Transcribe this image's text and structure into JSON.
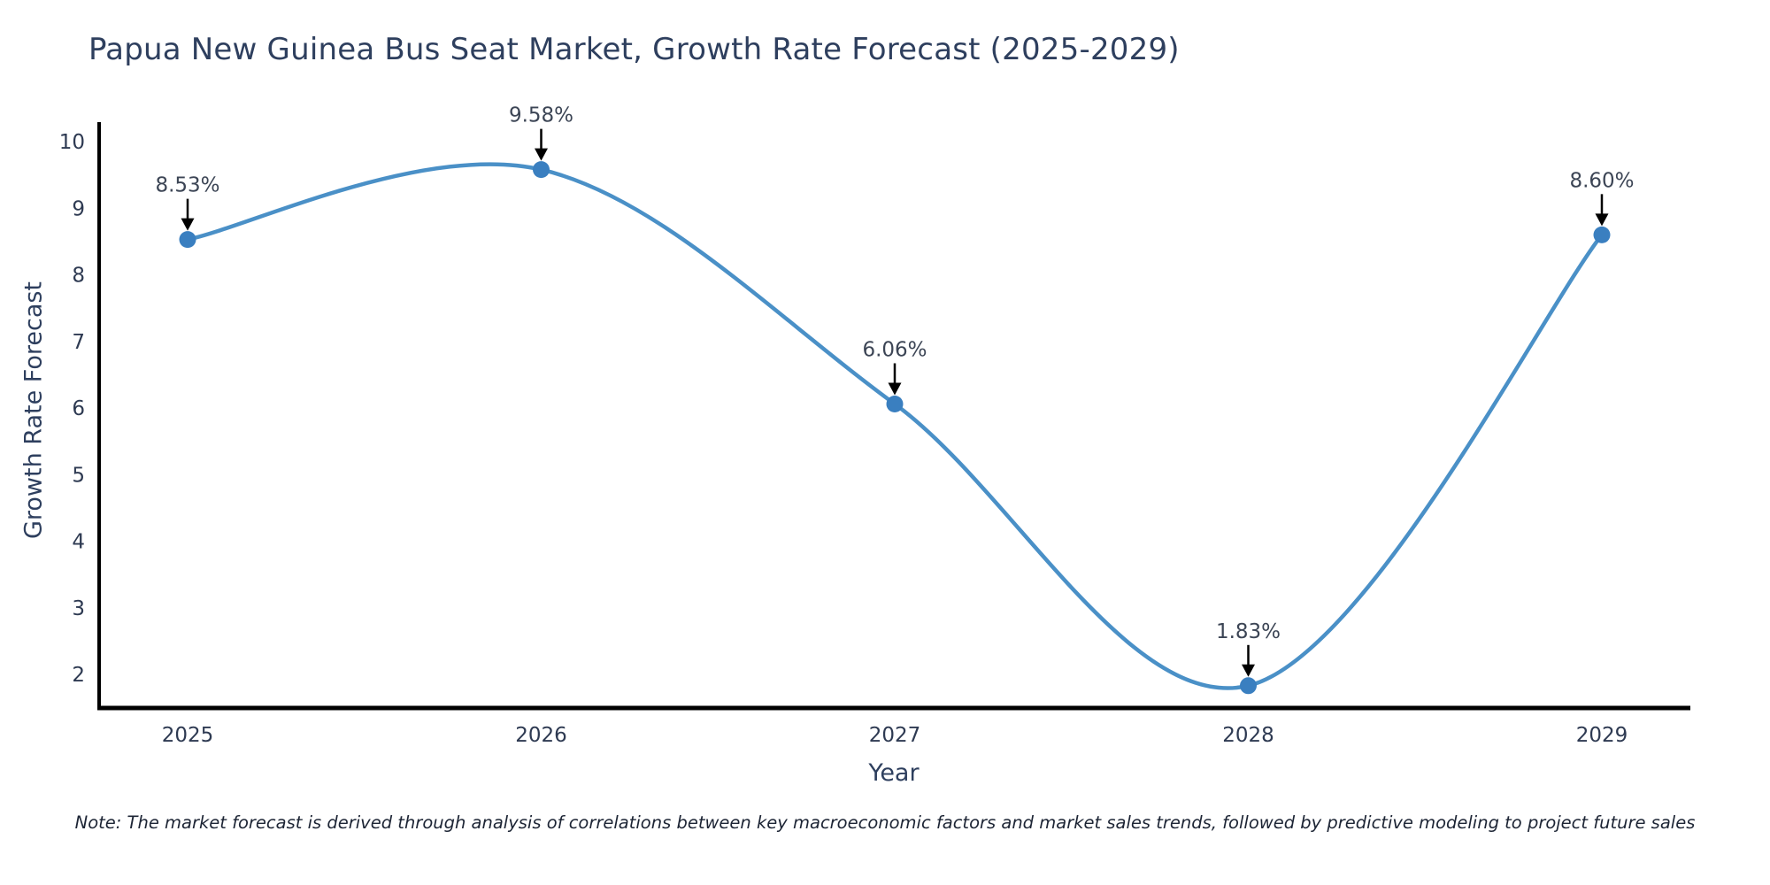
{
  "title": "Papua New Guinea Bus Seat Market, Growth Rate Forecast (2025-2029)",
  "note": "Note: The market forecast is derived through analysis of correlations between key macroeconomic factors and market sales trends, followed by predictive modeling to project future sales",
  "chart_data": {
    "type": "line",
    "title": "Papua New Guinea Bus Seat Market, Growth Rate Forecast (2025-2029)",
    "xlabel": "Year",
    "ylabel": "Growth Rate Forecast",
    "categories": [
      "2025",
      "2026",
      "2027",
      "2028",
      "2029"
    ],
    "values": [
      8.53,
      9.58,
      6.06,
      1.83,
      8.6
    ],
    "point_labels": [
      "8.53%",
      "9.58%",
      "6.06%",
      "1.83%",
      "8.60%"
    ],
    "yticks": [
      2,
      3,
      4,
      5,
      6,
      7,
      8,
      9,
      10
    ],
    "ylim": [
      1.5,
      10.3
    ],
    "grid": "off",
    "legend": "none",
    "smooth": true,
    "colors": {
      "line": "#4a90c7",
      "marker": "#3a7fc0",
      "annotation_text": "#3c4555",
      "annotation_arrow": "#000000",
      "axis_spine": "#000000",
      "tick_label": "#2e3a52",
      "title_text": "#2e3f5e",
      "note_text": "#1d2535",
      "background": "#ffffff"
    }
  }
}
